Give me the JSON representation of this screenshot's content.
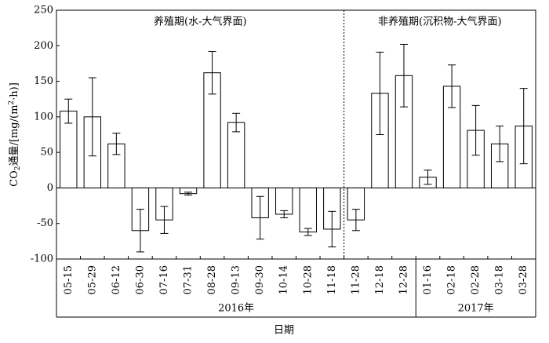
{
  "chart_data": {
    "type": "bar",
    "categories": [
      "05-15",
      "05-29",
      "06-12",
      "06-30",
      "07-16",
      "07-31",
      "08-28",
      "09-13",
      "09-30",
      "10-14",
      "10-28",
      "11-18",
      "11-28",
      "12-18",
      "12-28",
      "01-16",
      "02-18",
      "02-28",
      "03-18",
      "03-28"
    ],
    "values": [
      108,
      100,
      62,
      -60,
      -45,
      -8,
      162,
      92,
      -42,
      -37,
      -62,
      -58,
      -45,
      133,
      158,
      15,
      143,
      81,
      62,
      87
    ],
    "errors": [
      17,
      55,
      15,
      30,
      19,
      2,
      30,
      13,
      30,
      5,
      5,
      25,
      15,
      58,
      44,
      10,
      30,
      35,
      25,
      53
    ],
    "color": "#ffffff",
    "ylim": [
      -100,
      250
    ],
    "yticks": [
      250,
      200,
      150,
      100,
      50,
      0,
      -50,
      -100
    ],
    "ylabel_parts": [
      "CO",
      "2",
      "通量/[mg/(m",
      "2",
      "·h)]"
    ],
    "xlabel": "日期",
    "periods": [
      {
        "label": "养殖期(水-大气界面)",
        "count": 12
      },
      {
        "label": "非养殖期(沉积物-大气界面)",
        "count": 8
      }
    ],
    "groups": [
      {
        "label": "2016年",
        "count": 15
      },
      {
        "label": "2017年",
        "count": 5
      }
    ]
  }
}
